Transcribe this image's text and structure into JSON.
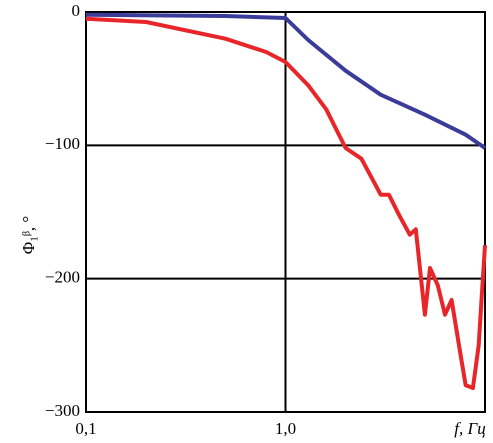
{
  "chart_data": {
    "type": "line",
    "x_label": "f, Гц",
    "y_label": "Φ₁ᵝ, °",
    "x_scale": "log",
    "grid": true,
    "xlim": [
      0.1,
      10
    ],
    "xticks": [
      {
        "value": 0.1,
        "label": "0,1"
      },
      {
        "value": 1,
        "label": "1,0"
      }
    ],
    "ylim": [
      -300,
      0
    ],
    "yticks": [
      {
        "value": -300,
        "label": "−300"
      },
      {
        "value": -200,
        "label": "−200"
      },
      {
        "value": -100,
        "label": "−100"
      },
      0
    ],
    "series": [
      {
        "color": "#3b3b9a",
        "x": [
          0.1,
          0.5,
          1.0,
          1.3,
          2.0,
          3.0,
          5.0,
          8.0,
          10
        ],
        "values": [
          -2,
          -3,
          -4.5,
          -21,
          -44,
          -62,
          -77,
          -92,
          -102
        ]
      },
      {
        "color": "#e8262a",
        "x": [
          0.1,
          0.2,
          0.5,
          0.8,
          1.0,
          1.3,
          1.6,
          2.0,
          2.4,
          3.0,
          3.3,
          3.7,
          4.2,
          4.5,
          5.0,
          5.3,
          5.8,
          6.3,
          6.8,
          7.5,
          8.0,
          8.7,
          9.3,
          9.6,
          10
        ],
        "values": [
          -5,
          -7.5,
          -20,
          -30,
          -37.5,
          -55,
          -73,
          -102,
          -110,
          -137,
          -137,
          -152,
          -167,
          -163,
          -227,
          -192,
          -205,
          -227,
          -216,
          -255,
          -280,
          -282,
          -250,
          -216,
          -175
        ]
      }
    ]
  }
}
